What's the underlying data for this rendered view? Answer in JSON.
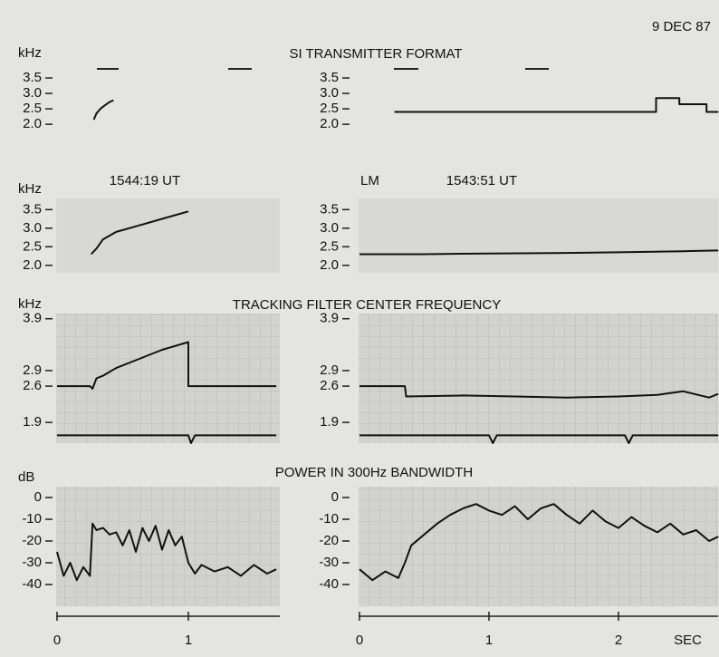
{
  "figure": {
    "date": "9 DEC 87",
    "xlabel": "SEC",
    "row1_title": "SI TRANSMITTER FORMAT",
    "row3_title": "TRACKING FILTER CENTER FREQUENCY",
    "row4_title": "POWER IN 300Hz BANDWIDTH"
  },
  "chart_data": [
    {
      "type": "line",
      "ylabel": "kHz",
      "xlim": [
        0,
        1.7
      ],
      "ylim": [
        1.3,
        4.0
      ],
      "yticks": [
        {
          "value": 2,
          "label": "2.0"
        },
        2.5,
        {
          "value": 3,
          "label": "3.0"
        },
        3.5
      ],
      "series": [
        {
          "color": "#111111",
          "x": [
            0.28,
            0.3,
            0.33,
            0.36,
            0.4,
            0.43
          ],
          "values": [
            2.15,
            2.35,
            2.5,
            2.6,
            2.72,
            2.78
          ]
        }
      ]
    },
    {
      "type": "line",
      "xlim": [
        0,
        2.77
      ],
      "ylim": [
        1.3,
        4.0
      ],
      "yticks": [
        {
          "value": 2,
          "label": "2.0"
        },
        2.5,
        {
          "value": 3,
          "label": "3.0"
        },
        3.5
      ],
      "series": [
        {
          "color": "#111111",
          "x": [
            0.27,
            2.29,
            2.29,
            2.47,
            2.47,
            2.68,
            2.68,
            2.77
          ],
          "values": [
            2.4,
            2.4,
            2.85,
            2.85,
            2.65,
            2.65,
            2.4,
            2.4
          ]
        }
      ]
    },
    {
      "type": "line",
      "ylabel": "kHz",
      "title": "1544:19 UT",
      "xlim": [
        0,
        1.7
      ],
      "ylim": [
        1.8,
        3.8
      ],
      "yticks": [
        {
          "value": 2,
          "label": "2.0"
        },
        2.5,
        {
          "value": 3,
          "label": "3.0"
        },
        3.5
      ],
      "series": [
        {
          "color": "#111111",
          "x": [
            0.26,
            0.3,
            0.35,
            0.45,
            0.6,
            0.8,
            1.0
          ],
          "values": [
            2.3,
            2.45,
            2.7,
            2.9,
            3.05,
            3.25,
            3.45
          ]
        }
      ]
    },
    {
      "type": "line",
      "annotation": "LM",
      "title": "1543:51 UT",
      "xlim": [
        0,
        2.77
      ],
      "ylim": [
        1.8,
        3.8
      ],
      "yticks": [
        {
          "value": 2,
          "label": "2.0"
        },
        2.5,
        {
          "value": 3,
          "label": "3.0"
        },
        3.5
      ],
      "series": [
        {
          "color": "#111111",
          "x": [
            0,
            0.5,
            1.0,
            1.5,
            2.0,
            2.5,
            2.77
          ],
          "values": [
            2.3,
            2.3,
            2.32,
            2.33,
            2.35,
            2.38,
            2.4
          ]
        }
      ]
    },
    {
      "type": "line",
      "ylabel": "kHz",
      "grid": true,
      "xlim": [
        0,
        1.7
      ],
      "ylim": [
        1.5,
        4.0
      ],
      "yticks": [
        1.9,
        2.6,
        2.9,
        3.9
      ],
      "series": [
        {
          "color": "#111111",
          "x": [
            0,
            0.25,
            0.27,
            0.3,
            0.35,
            0.45,
            0.6,
            0.8,
            1.0,
            1.0,
            1.67
          ],
          "values": [
            2.6,
            2.6,
            2.55,
            2.75,
            2.8,
            2.95,
            3.1,
            3.3,
            3.45,
            2.6,
            2.6
          ]
        },
        {
          "color": "#111111",
          "x": [
            0,
            1.0,
            1.02,
            1.05,
            1.67
          ],
          "values": [
            1.65,
            1.65,
            1.5,
            1.65,
            1.65
          ]
        }
      ]
    },
    {
      "type": "line",
      "grid": true,
      "xlim": [
        0,
        2.77
      ],
      "ylim": [
        1.5,
        4.0
      ],
      "yticks": [
        1.9,
        2.6,
        2.9,
        3.9
      ],
      "series": [
        {
          "color": "#111111",
          "x": [
            0,
            0.35,
            0.36,
            0.8,
            1.2,
            1.6,
            2.0,
            2.3,
            2.5,
            2.7,
            2.77
          ],
          "values": [
            2.6,
            2.6,
            2.4,
            2.42,
            2.4,
            2.38,
            2.4,
            2.43,
            2.5,
            2.38,
            2.45
          ]
        },
        {
          "color": "#111111",
          "x": [
            0,
            1.0,
            1.03,
            1.06,
            2.05,
            2.08,
            2.11,
            2.77
          ],
          "values": [
            1.65,
            1.65,
            1.5,
            1.65,
            1.65,
            1.5,
            1.65,
            1.65
          ]
        }
      ]
    },
    {
      "type": "line",
      "ylabel": "dB",
      "grid": true,
      "xlim": [
        0,
        1.7
      ],
      "ylim": [
        -50,
        5
      ],
      "yticks": [
        0,
        -10,
        -20,
        -30,
        -40
      ],
      "xticks": [
        0,
        1
      ],
      "series": [
        {
          "color": "#111111",
          "x": [
            0,
            0.05,
            0.1,
            0.15,
            0.2,
            0.25,
            0.27,
            0.3,
            0.35,
            0.4,
            0.45,
            0.5,
            0.55,
            0.6,
            0.65,
            0.7,
            0.75,
            0.8,
            0.85,
            0.9,
            0.95,
            1.0,
            1.05,
            1.1,
            1.2,
            1.3,
            1.4,
            1.5,
            1.6,
            1.67
          ],
          "values": [
            -25,
            -36,
            -30,
            -38,
            -32,
            -36,
            -12,
            -15,
            -14,
            -17,
            -16,
            -22,
            -15,
            -25,
            -14,
            -20,
            -13,
            -24,
            -15,
            -22,
            -18,
            -30,
            -35,
            -31,
            -34,
            -32,
            -36,
            -31,
            -35,
            -33
          ]
        }
      ]
    },
    {
      "type": "line",
      "grid": true,
      "xlim": [
        0,
        2.77
      ],
      "ylim": [
        -50,
        5
      ],
      "yticks": [
        0,
        -10,
        -20,
        -30,
        -40
      ],
      "xticks": [
        0,
        1,
        2
      ],
      "series": [
        {
          "color": "#111111",
          "x": [
            0,
            0.1,
            0.2,
            0.3,
            0.35,
            0.4,
            0.5,
            0.6,
            0.7,
            0.8,
            0.9,
            1.0,
            1.1,
            1.2,
            1.3,
            1.4,
            1.5,
            1.6,
            1.7,
            1.8,
            1.9,
            2.0,
            2.1,
            2.2,
            2.3,
            2.4,
            2.5,
            2.6,
            2.7,
            2.77
          ],
          "values": [
            -33,
            -38,
            -34,
            -37,
            -30,
            -22,
            -17,
            -12,
            -8,
            -5,
            -3,
            -6,
            -8,
            -4,
            -10,
            -5,
            -3,
            -8,
            -12,
            -6,
            -11,
            -14,
            -9,
            -13,
            -16,
            -12,
            -17,
            -15,
            -20,
            -18
          ]
        }
      ]
    }
  ]
}
